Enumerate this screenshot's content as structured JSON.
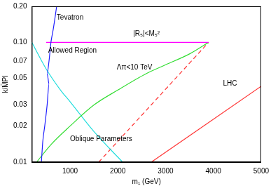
{
  "chart_data": {
    "type": "line",
    "x_label": "m₁ (GeV)",
    "y_label": "k/M̄Pl",
    "log": "y",
    "grid": false,
    "xlim": [
      200,
      5000
    ],
    "xticks": [
      1000,
      2000,
      3000,
      4000,
      5000
    ],
    "ylim": [
      0.01,
      0.2
    ],
    "yticks": [
      0.01,
      0.02,
      0.03,
      0.05,
      0.07,
      {
        "value": 0.1,
        "label": "0.10"
      },
      {
        "value": 0.2,
        "label": "0.20"
      }
    ],
    "annotations": [
      {
        "text": "Allowed Region",
        "x": 1050,
        "y": 0.085
      }
    ],
    "series": [
      {
        "name": "Tevatron",
        "color": "#2020ff",
        "line_style": "solid",
        "label_position": {
          "x": 1000,
          "y": 0.16
        },
        "x": [
          720,
          650,
          600,
          560,
          520,
          560,
          520,
          470,
          430,
          400
        ],
        "values": [
          0.2,
          0.13,
          0.1,
          0.07,
          0.055,
          0.045,
          0.03,
          0.02,
          0.015,
          0.01
        ]
      },
      {
        "name": "|R₅|<M₅²",
        "color": "#ff00ff",
        "line_style": "solid",
        "label_position": {
          "x": 2600,
          "y": 0.118
        },
        "x": [
          500,
          3900
        ],
        "values": [
          0.1,
          0.1
        ]
      },
      {
        "name": "Λπ<10 TeV",
        "color": "#33dd33",
        "line_style": "solid",
        "label_position": {
          "x": 2350,
          "y": 0.062
        },
        "x": [
          300,
          600,
          1000,
          1500,
          2000,
          2600,
          3000,
          3500,
          3900
        ],
        "values": [
          0.01,
          0.014,
          0.02,
          0.03,
          0.04,
          0.055,
          0.065,
          0.08,
          0.1
        ]
      },
      {
        "name": "Oblique Parameters",
        "color": "#22dddd",
        "line_style": "solid",
        "label_position": {
          "x": 1650,
          "y": 0.0155
        },
        "x": [
          200,
          500,
          800,
          1000,
          1500,
          2100
        ],
        "values": [
          0.1,
          0.06,
          0.04,
          0.032,
          0.018,
          0.01
        ]
      },
      {
        "color": "#ff3333",
        "line_style": "dashed",
        "x": [
          1600,
          3900
        ],
        "values": [
          0.01,
          0.1
        ]
      },
      {
        "name": "LHC",
        "color": "#ff3333",
        "line_style": "solid",
        "label_position": {
          "x": 4350,
          "y": 0.045
        },
        "x": [
          2700,
          5000
        ],
        "values": [
          0.01,
          0.043
        ]
      }
    ]
  }
}
